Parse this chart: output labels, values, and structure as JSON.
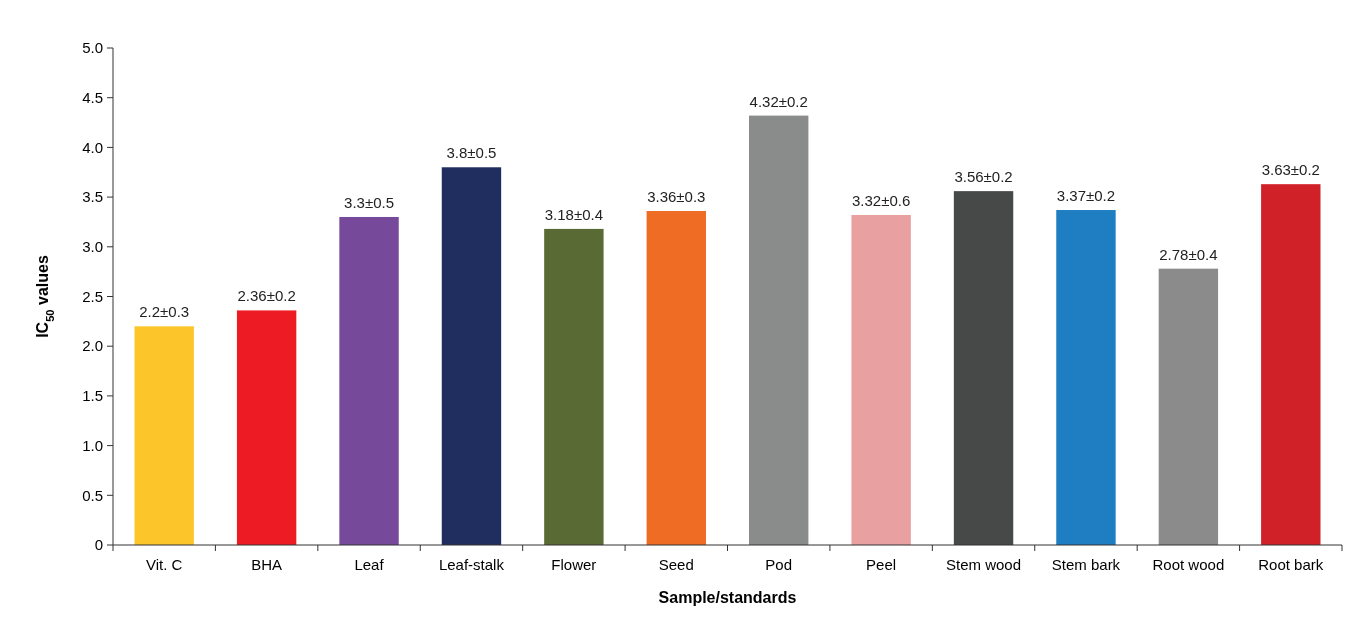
{
  "chart_data": {
    "type": "bar",
    "xlabel": "Sample/standards",
    "ylabel": "IC$_{50}$ values",
    "categories": [
      "Vit. C",
      "BHA",
      "Leaf",
      "Leaf-stalk",
      "Flower",
      "Seed",
      "Pod",
      "Peel",
      "Stem wood",
      "Stem bark",
      "Root wood",
      "Root bark"
    ],
    "values": [
      2.2,
      2.36,
      3.3,
      3.8,
      3.18,
      3.36,
      4.32,
      3.32,
      3.56,
      3.37,
      2.78,
      3.63
    ],
    "colors": [
      "#fcc62a",
      "#ed1c24",
      "#76499a",
      "#1f2d5f",
      "#596a34",
      "#ef6c25",
      "#8a8b8b",
      "#e8a0a1",
      "#474848",
      "#1f7dc2",
      "#8a8b8a",
      "#d02128"
    ],
    "value_labels": [
      "2.2±0.3",
      "2.36±0.2",
      "3.3±0.5",
      "3.8±0.5",
      "3.18±0.4",
      "3.36±0.3",
      "4.32±0.2",
      "3.32±0.6",
      "3.56±0.2",
      "3.37±0.2",
      "2.78±0.4",
      "3.63±0.2"
    ],
    "ylim": [
      0,
      5
    ],
    "yticks": [
      0,
      {
        "value": 0.5,
        "label": "0.5"
      },
      {
        "value": 1,
        "label": "1.0"
      },
      {
        "value": 1.5,
        "label": "1.5"
      },
      {
        "value": 2,
        "label": "2.0"
      },
      {
        "value": 2.5,
        "label": "2.5"
      },
      {
        "value": 3,
        "label": "3.0"
      },
      {
        "value": 3.5,
        "label": "3.5"
      },
      {
        "value": 4,
        "label": "4.0"
      },
      {
        "value": 4.5,
        "label": "4.5"
      },
      {
        "value": 5,
        "label": "5.0"
      }
    ],
    "grid": false
  }
}
